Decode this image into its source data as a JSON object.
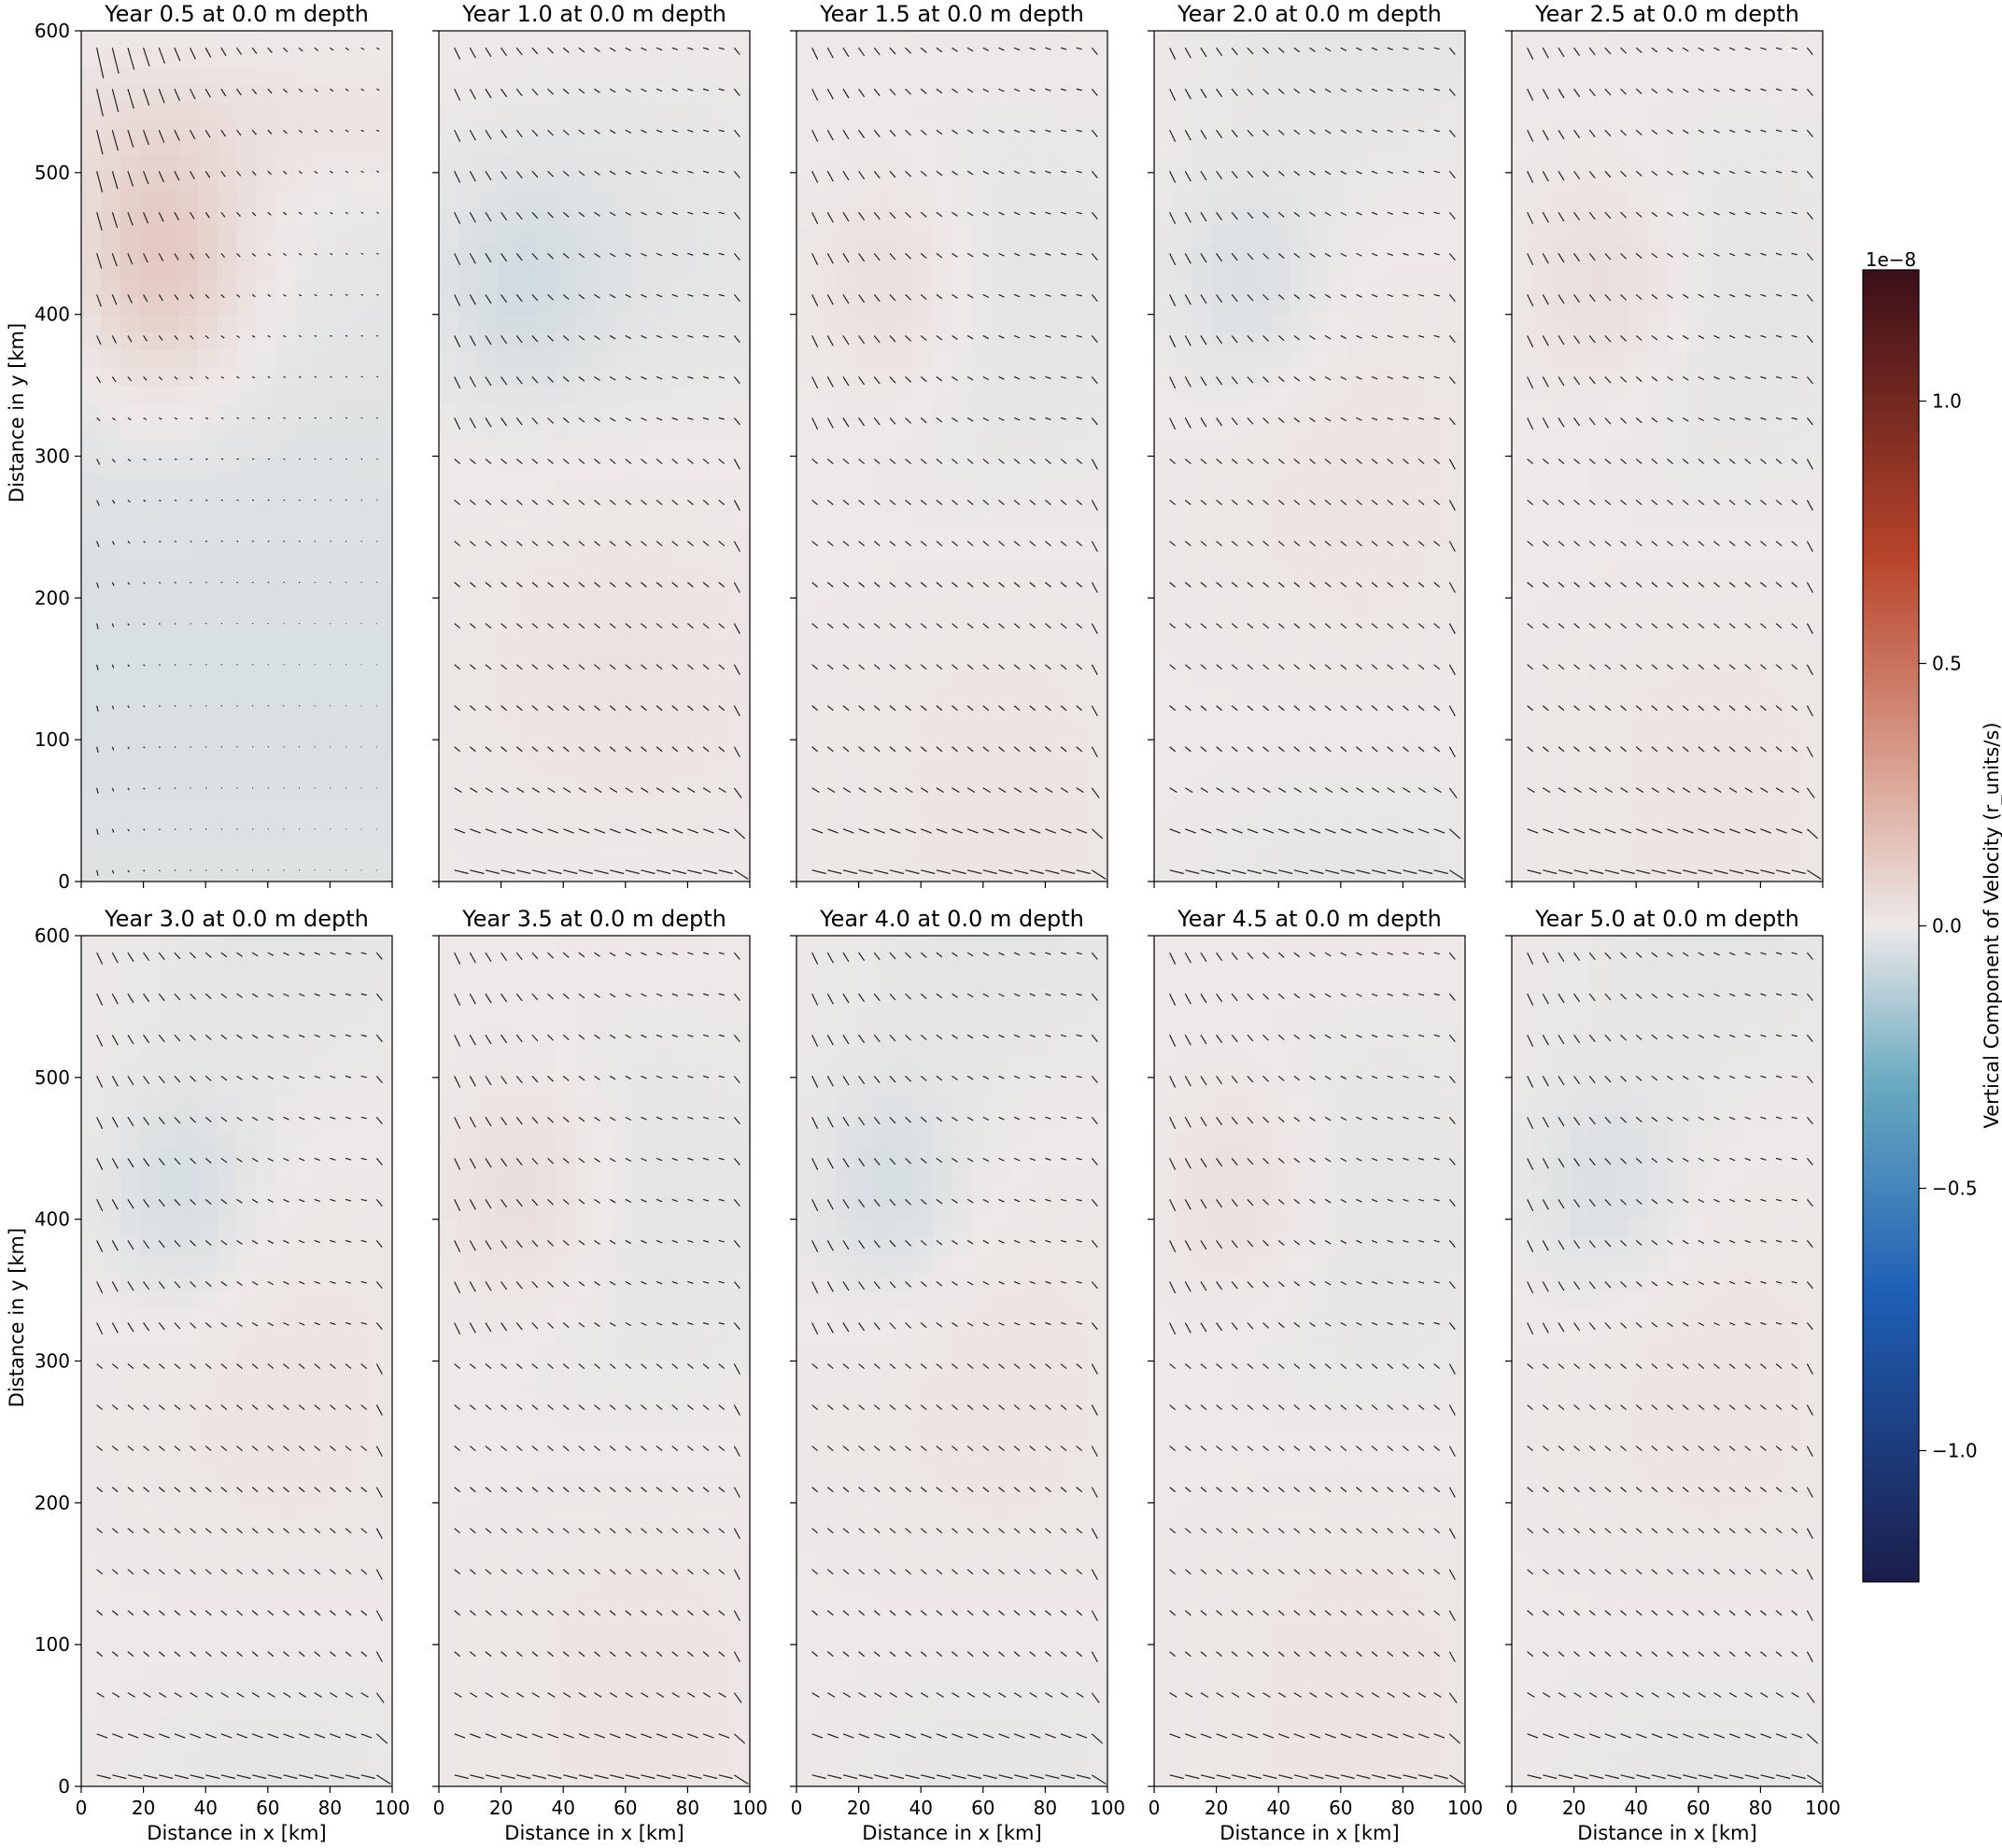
{
  "figure": {
    "x_label": "Distance in x [km]",
    "y_label": "Distance in y [km]",
    "colorbar_label": "Vertical Component of Velocity (r_units/s)",
    "colorbar_exponent": "1e−8",
    "colors": {
      "cmap_neg_dark": "#1b1d4a",
      "cmap_neg_mid": "#1e5fb5",
      "cmap_neg_light": "#6aaac0",
      "cmap_zero": "#ede9e8",
      "cmap_pos_light": "#d9a090",
      "cmap_pos_mid": "#b8452a",
      "cmap_pos_dark": "#3a0f18"
    }
  },
  "chart_data": [
    {
      "type": "heatmap",
      "title": "Year 0.5 at 0.0 m depth",
      "xlim": [
        0,
        100
      ],
      "ylim": [
        0,
        600
      ],
      "x_ticks": [
        0,
        20,
        40,
        60,
        80,
        100
      ],
      "y_ticks": [
        0,
        100,
        200,
        300,
        400,
        500,
        600
      ],
      "pattern": "initial",
      "eddy": {
        "x": 25,
        "y": 440,
        "sign": 1,
        "amp": 0.25
      }
    },
    {
      "type": "heatmap",
      "title": "Year 1.0 at 0.0 m depth",
      "xlim": [
        0,
        100
      ],
      "ylim": [
        0,
        600
      ],
      "x_ticks": [
        0,
        20,
        40,
        60,
        80,
        100
      ],
      "y_ticks": [
        0,
        100,
        200,
        300,
        400,
        500,
        600
      ],
      "pattern": "early",
      "eddy": {
        "x": 25,
        "y": 420,
        "sign": -1,
        "amp": 0.16
      }
    },
    {
      "type": "heatmap",
      "title": "Year 1.5 at 0.0 m depth",
      "xlim": [
        0,
        100
      ],
      "ylim": [
        0,
        600
      ],
      "x_ticks": [
        0,
        20,
        40,
        60,
        80,
        100
      ],
      "y_ticks": [
        0,
        100,
        200,
        300,
        400,
        500,
        600
      ],
      "pattern": "spun",
      "eddy": {
        "x": 30,
        "y": 420,
        "sign": 1,
        "amp": 0.15
      }
    },
    {
      "type": "heatmap",
      "title": "Year 2.0 at 0.0 m depth",
      "xlim": [
        0,
        100
      ],
      "ylim": [
        0,
        600
      ],
      "x_ticks": [
        0,
        20,
        40,
        60,
        80,
        100
      ],
      "y_ticks": [
        0,
        100,
        200,
        300,
        400,
        500,
        600
      ],
      "pattern": "spun",
      "eddy": {
        "x": 30,
        "y": 420,
        "sign": -1,
        "amp": 0.15
      }
    },
    {
      "type": "heatmap",
      "title": "Year 2.5 at 0.0 m depth",
      "xlim": [
        0,
        100
      ],
      "ylim": [
        0,
        600
      ],
      "x_ticks": [
        0,
        20,
        40,
        60,
        80,
        100
      ],
      "y_ticks": [
        0,
        100,
        200,
        300,
        400,
        500,
        600
      ],
      "pattern": "spun",
      "eddy": {
        "x": 30,
        "y": 425,
        "sign": 1,
        "amp": 0.18
      }
    },
    {
      "type": "heatmap",
      "title": "Year 3.0 at 0.0 m depth",
      "xlim": [
        0,
        100
      ],
      "ylim": [
        0,
        600
      ],
      "x_ticks": [
        0,
        20,
        40,
        60,
        80,
        100
      ],
      "y_ticks": [
        0,
        100,
        200,
        300,
        400,
        500,
        600
      ],
      "pattern": "spun",
      "eddy": {
        "x": 32,
        "y": 415,
        "sign": -1,
        "amp": 0.18
      }
    },
    {
      "type": "heatmap",
      "title": "Year 3.5 at 0.0 m depth",
      "xlim": [
        0,
        100
      ],
      "ylim": [
        0,
        600
      ],
      "x_ticks": [
        0,
        20,
        40,
        60,
        80,
        100
      ],
      "y_ticks": [
        0,
        100,
        200,
        300,
        400,
        500,
        600
      ],
      "pattern": "spun",
      "eddy": {
        "x": 28,
        "y": 420,
        "sign": 1,
        "amp": 0.18
      }
    },
    {
      "type": "heatmap",
      "title": "Year 4.0 at 0.0 m depth",
      "xlim": [
        0,
        100
      ],
      "ylim": [
        0,
        600
      ],
      "x_ticks": [
        0,
        20,
        40,
        60,
        80,
        100
      ],
      "y_ticks": [
        0,
        100,
        200,
        300,
        400,
        500,
        600
      ],
      "pattern": "spun",
      "eddy": {
        "x": 30,
        "y": 420,
        "sign": -1,
        "amp": 0.18
      }
    },
    {
      "type": "heatmap",
      "title": "Year 4.5 at 0.0 m depth",
      "xlim": [
        0,
        100
      ],
      "ylim": [
        0,
        600
      ],
      "x_ticks": [
        0,
        20,
        40,
        60,
        80,
        100
      ],
      "y_ticks": [
        0,
        100,
        200,
        300,
        400,
        500,
        600
      ],
      "pattern": "spun",
      "eddy": {
        "x": 28,
        "y": 420,
        "sign": 1,
        "amp": 0.15
      }
    },
    {
      "type": "heatmap",
      "title": "Year 5.0 at 0.0 m depth",
      "xlim": [
        0,
        100
      ],
      "ylim": [
        0,
        600
      ],
      "x_ticks": [
        0,
        20,
        40,
        60,
        80,
        100
      ],
      "y_ticks": [
        0,
        100,
        200,
        300,
        400,
        500,
        600
      ],
      "pattern": "spun",
      "eddy": {
        "x": 30,
        "y": 420,
        "sign": -1,
        "amp": 0.15
      }
    }
  ],
  "colorbar": {
    "range": [
      -1.25,
      1.25
    ],
    "ticks": [
      {
        "value": 1.0,
        "label": "1.0"
      },
      {
        "value": 0.5,
        "label": "0.5"
      },
      {
        "value": 0.0,
        "label": "0.0"
      },
      {
        "value": -0.5,
        "label": "−0.5"
      },
      {
        "value": -1.0,
        "label": "−1.0"
      }
    ]
  }
}
